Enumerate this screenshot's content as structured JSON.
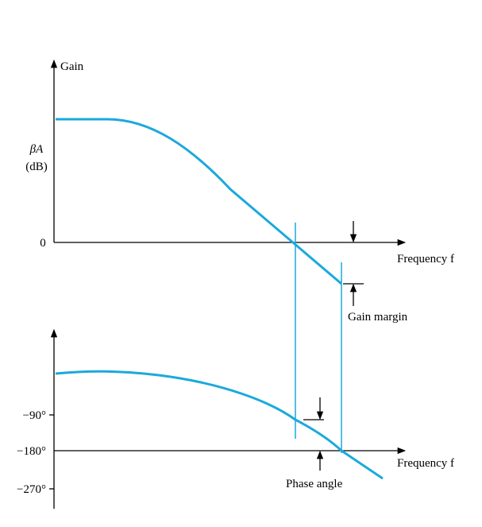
{
  "gain_plot": {
    "axis_title": "Gain",
    "y_label": "βA",
    "y_unit": "(dB)",
    "zero_label": "0",
    "x_label": "Frequency f",
    "gain_margin_label": "Gain margin"
  },
  "phase_plot": {
    "ticks": [
      "−90°",
      "−180°",
      "−270°"
    ],
    "x_label": "Frequency f",
    "phase_angle_label": "Phase angle"
  }
}
